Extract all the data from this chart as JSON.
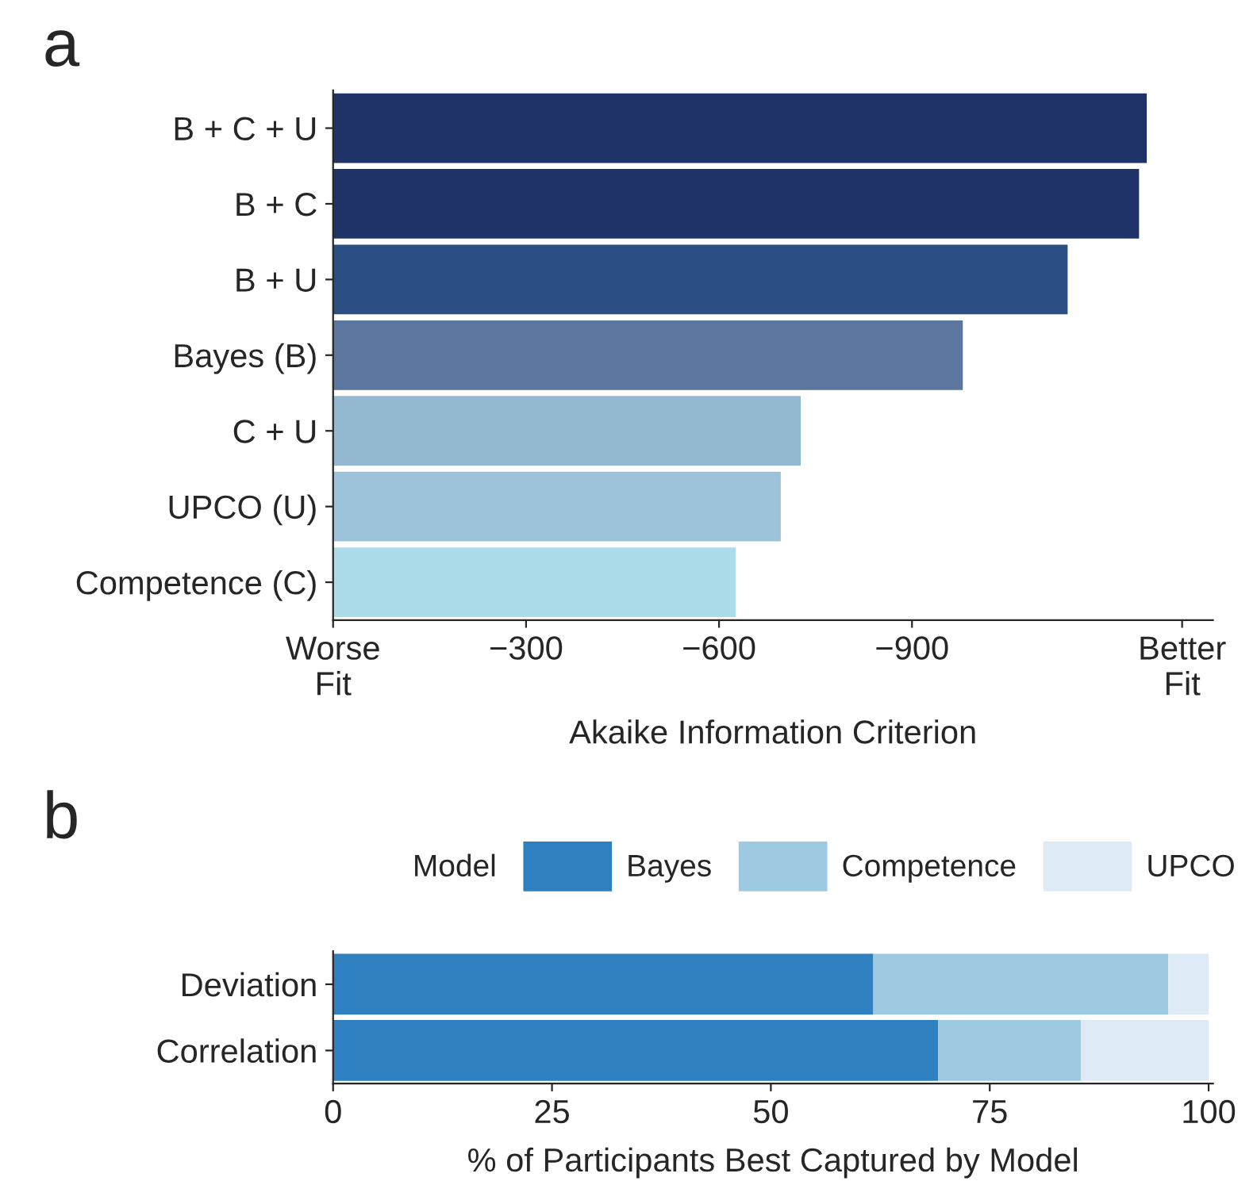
{
  "chart_data": [
    {
      "type": "bar",
      "orientation": "horizontal",
      "annotations": [
        "a"
      ],
      "xlabel": "Akaike Information Criterion",
      "categories": [
        "B + C + U",
        "B + C",
        "B + U",
        "Bayes (B)",
        "C + U",
        "UPCO (U)",
        "Competence (C)"
      ],
      "values": [
        -1265,
        -1253,
        -1142,
        -979,
        -727,
        -696,
        -626
      ],
      "colors": [
        "#1f3368",
        "#1f3368",
        "#2b4f85",
        "#5b77a0",
        "#93b8cf",
        "#9cc3d9",
        "#acdbe9"
      ],
      "xlim": [
        0,
        -1368
      ],
      "xticks": [
        {
          "value": 0,
          "label": "Worse\nFit"
        },
        {
          "value": -300,
          "label": "−300"
        },
        {
          "value": -600,
          "label": "−600"
        },
        {
          "value": -900,
          "label": "−900"
        },
        {
          "value": -1320,
          "label": "Better\nFit"
        }
      ],
      "grid": false,
      "legend": false
    },
    {
      "type": "bar",
      "orientation": "horizontal",
      "stacked": true,
      "annotations": [
        "b"
      ],
      "xlabel": "% of Participants Best Captured by Model",
      "legend_title": "Model",
      "legend": "top",
      "categories": [
        "Deviation",
        "Correlation"
      ],
      "series": [
        {
          "name": "Bayes",
          "color": "#2e80c0",
          "values": [
            61.7,
            69.1
          ]
        },
        {
          "name": "Competence",
          "color": "#9ecae1",
          "values": [
            33.7,
            16.3
          ]
        },
        {
          "name": "UPCO",
          "color": "#deebf7",
          "values": [
            4.6,
            14.6
          ]
        }
      ],
      "xlim": [
        0,
        100.5
      ],
      "xticks": [
        0,
        25,
        50,
        75,
        100
      ],
      "grid": false
    }
  ]
}
